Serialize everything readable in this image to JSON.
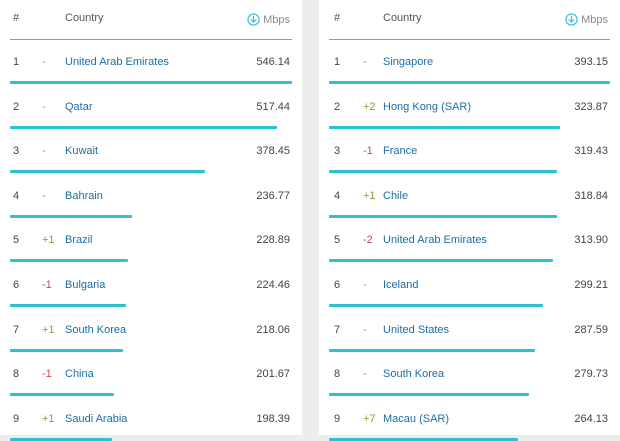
{
  "colors": {
    "accent": "#2dc2cf",
    "link": "#1b6fa6",
    "up": "#7aa43e",
    "down": "#d2464e"
  },
  "left_table": {
    "header": {
      "rank": "#",
      "country": "Country",
      "unit": "Mbps",
      "unit_icon": "download-circle-icon"
    },
    "max_speed": 546.14,
    "rows": [
      {
        "rank": "1",
        "change": "-",
        "country": "United Arab Emirates",
        "speed": "546.14",
        "value": 546.14
      },
      {
        "rank": "2",
        "change": "-",
        "country": "Qatar",
        "speed": "517.44",
        "value": 517.44
      },
      {
        "rank": "3",
        "change": "-",
        "country": "Kuwait",
        "speed": "378.45",
        "value": 378.45
      },
      {
        "rank": "4",
        "change": "-",
        "country": "Bahrain",
        "speed": "236.77",
        "value": 236.77
      },
      {
        "rank": "5",
        "change": "+1",
        "country": "Brazil",
        "speed": "228.89",
        "value": 228.89
      },
      {
        "rank": "6",
        "change": "-1",
        "country": "Bulgaria",
        "speed": "224.46",
        "value": 224.46
      },
      {
        "rank": "7",
        "change": "+1",
        "country": "South Korea",
        "speed": "218.06",
        "value": 218.06
      },
      {
        "rank": "8",
        "change": "-1",
        "country": "China",
        "speed": "201.67",
        "value": 201.67
      },
      {
        "rank": "9",
        "change": "+1",
        "country": "Saudi Arabia",
        "speed": "198.39",
        "value": 198.39
      }
    ]
  },
  "right_table": {
    "header": {
      "rank": "#",
      "country": "Country",
      "unit": "Mbps",
      "unit_icon": "download-circle-icon"
    },
    "max_speed": 393.15,
    "rows": [
      {
        "rank": "1",
        "change": "-",
        "country": "Singapore",
        "speed": "393.15",
        "value": 393.15
      },
      {
        "rank": "2",
        "change": "+2",
        "country": "Hong Kong (SAR)",
        "speed": "323.87",
        "value": 323.87
      },
      {
        "rank": "3",
        "change": "-1",
        "country": "France",
        "speed": "319.43",
        "value": 319.43
      },
      {
        "rank": "4",
        "change": "+1",
        "country": "Chile",
        "speed": "318.84",
        "value": 318.84
      },
      {
        "rank": "5",
        "change": "-2",
        "country": "United Arab Emirates",
        "speed": "313.90",
        "value": 313.9
      },
      {
        "rank": "6",
        "change": "-",
        "country": "Iceland",
        "speed": "299.21",
        "value": 299.21
      },
      {
        "rank": "7",
        "change": "-",
        "country": "United States",
        "speed": "287.59",
        "value": 287.59
      },
      {
        "rank": "8",
        "change": "-",
        "country": "South Korea",
        "speed": "279.73",
        "value": 279.73
      },
      {
        "rank": "9",
        "change": "+7",
        "country": "Macau (SAR)",
        "speed": "264.13",
        "value": 264.13
      }
    ]
  }
}
